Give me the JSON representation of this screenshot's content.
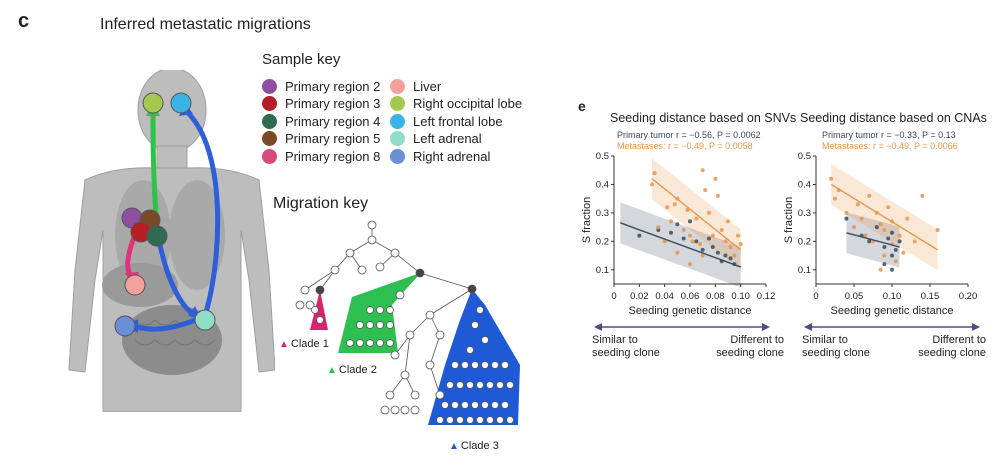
{
  "panel_c": {
    "letter": "c",
    "title": "Inferred metastatic migrations",
    "sample_key_title": "Sample key",
    "sample_key": [
      {
        "label": "Primary region 2",
        "color": "#8e4fa0"
      },
      {
        "label": "Primary region 3",
        "color": "#b51e24"
      },
      {
        "label": "Primary region 4",
        "color": "#2e6b4f"
      },
      {
        "label": "Primary region 5",
        "color": "#7a4a26"
      },
      {
        "label": "Primary region 8",
        "color": "#d84a7d"
      },
      {
        "label": "Liver",
        "color": "#f4a09c"
      },
      {
        "label": "Right occipital lobe",
        "color": "#a6c850"
      },
      {
        "label": "Left frontal lobe",
        "color": "#3ab4e6"
      },
      {
        "label": "Left adrenal",
        "color": "#8fdcc8"
      },
      {
        "label": "Right adrenal",
        "color": "#6a8fd6"
      }
    ],
    "migration_key_title": "Migration key",
    "clades": [
      {
        "label": "Clade 1",
        "color": "#d6246f"
      },
      {
        "label": "Clade 2",
        "color": "#2dbf4f"
      },
      {
        "label": "Clade 3",
        "color": "#1e5ad6"
      }
    ],
    "arrow_colors": {
      "green": "#2ec24a",
      "pink": "#e0337a",
      "blue": "#2f5fd8"
    }
  },
  "panel_e": {
    "letter": "e",
    "colors": {
      "primary": "#3b4a5a",
      "metastases": "#e8944a"
    },
    "direction_left": [
      "Similar to",
      "seeding clone"
    ],
    "direction_right": [
      "Different to",
      "seeding clone"
    ]
  },
  "chart_data": [
    {
      "type": "scatter",
      "title": "Seeding distance based on SNVs",
      "annotations": [
        {
          "series": "Primary tumor",
          "text": "Primary tumor r = −0.56, P = 0.0062"
        },
        {
          "series": "Metastases",
          "text": "Metastases: r = −0.49, P = 0.0058"
        }
      ],
      "xlabel": "Seeding genetic distance",
      "ylabel": "S fraction",
      "xlim": [
        0,
        0.12
      ],
      "ylim": [
        0.05,
        0.5
      ],
      "xticks": [
        "0",
        "0.02",
        "0.04",
        "0.06",
        "0.08",
        "0.10",
        "0.12"
      ],
      "yticks": [
        "0.1",
        "0.2",
        "0.3",
        "0.4",
        "0.5"
      ],
      "series": [
        {
          "name": "Primary tumor",
          "color": "#3b4a5a",
          "fit": [
            [
              0.005,
              0.265
            ],
            [
              0.1,
              0.11
            ]
          ],
          "points": [
            [
              0.02,
              0.22
            ],
            [
              0.035,
              0.24
            ],
            [
              0.045,
              0.23
            ],
            [
              0.055,
              0.21
            ],
            [
              0.06,
              0.27
            ],
            [
              0.065,
              0.2
            ],
            [
              0.07,
              0.17
            ],
            [
              0.078,
              0.18
            ],
            [
              0.082,
              0.16
            ],
            [
              0.088,
              0.15
            ],
            [
              0.092,
              0.14
            ],
            [
              0.05,
              0.26
            ],
            [
              0.075,
              0.21
            ],
            [
              0.085,
              0.13
            ],
            [
              0.095,
              0.12
            ]
          ]
        },
        {
          "name": "Metastases",
          "color": "#e8944a",
          "fit": [
            [
              0.03,
              0.42
            ],
            [
              0.1,
              0.17
            ]
          ],
          "points": [
            [
              0.03,
              0.4
            ],
            [
              0.032,
              0.44
            ],
            [
              0.035,
              0.25
            ],
            [
              0.04,
              0.2
            ],
            [
              0.042,
              0.32
            ],
            [
              0.045,
              0.27
            ],
            [
              0.048,
              0.33
            ],
            [
              0.05,
              0.35
            ],
            [
              0.055,
              0.24
            ],
            [
              0.058,
              0.31
            ],
            [
              0.06,
              0.22
            ],
            [
              0.062,
              0.2
            ],
            [
              0.065,
              0.28
            ],
            [
              0.068,
              0.19
            ],
            [
              0.07,
              0.45
            ],
            [
              0.072,
              0.38
            ],
            [
              0.075,
              0.3
            ],
            [
              0.078,
              0.22
            ],
            [
              0.08,
              0.42
            ],
            [
              0.082,
              0.36
            ],
            [
              0.085,
              0.24
            ],
            [
              0.088,
              0.2
            ],
            [
              0.09,
              0.27
            ],
            [
              0.092,
              0.18
            ],
            [
              0.095,
              0.15
            ],
            [
              0.098,
              0.22
            ],
            [
              0.1,
              0.19
            ],
            [
              0.05,
              0.16
            ],
            [
              0.06,
              0.12
            ],
            [
              0.07,
              0.15
            ]
          ]
        }
      ]
    },
    {
      "type": "scatter",
      "title": "Seeding distance based on CNAs",
      "annotations": [
        {
          "series": "Primary tumor",
          "text": "Primary tumor r = −0.33, P = 0.13"
        },
        {
          "series": "Metastases",
          "text": "Metastases: r = −0.49, P = 0.0066"
        }
      ],
      "xlabel": "Seeding genetic distance",
      "ylabel": "S fraction",
      "xlim": [
        0,
        0.2
      ],
      "ylim": [
        0.05,
        0.5
      ],
      "xticks": [
        "0",
        "0.05",
        "0.10",
        "0.15",
        "0.20"
      ],
      "yticks": [
        "0.1",
        "0.2",
        "0.3",
        "0.4",
        "0.5"
      ],
      "series": [
        {
          "name": "Primary tumor",
          "color": "#3b4a5a",
          "fit": [
            [
              0.04,
              0.23
            ],
            [
              0.11,
              0.18
            ]
          ],
          "points": [
            [
              0.04,
              0.28
            ],
            [
              0.06,
              0.22
            ],
            [
              0.07,
              0.2
            ],
            [
              0.08,
              0.25
            ],
            [
              0.09,
              0.18
            ],
            [
              0.095,
              0.21
            ],
            [
              0.1,
              0.15
            ],
            [
              0.1,
              0.23
            ],
            [
              0.105,
              0.17
            ],
            [
              0.11,
              0.2
            ],
            [
              0.09,
              0.12
            ],
            [
              0.1,
              0.1
            ]
          ]
        },
        {
          "name": "Metastases",
          "color": "#e8944a",
          "fit": [
            [
              0.02,
              0.4
            ],
            [
              0.16,
              0.17
            ]
          ],
          "points": [
            [
              0.02,
              0.42
            ],
            [
              0.025,
              0.35
            ],
            [
              0.03,
              0.38
            ],
            [
              0.04,
              0.3
            ],
            [
              0.05,
              0.25
            ],
            [
              0.055,
              0.33
            ],
            [
              0.06,
              0.28
            ],
            [
              0.065,
              0.22
            ],
            [
              0.07,
              0.36
            ],
            [
              0.075,
              0.2
            ],
            [
              0.08,
              0.3
            ],
            [
              0.085,
              0.26
            ],
            [
              0.09,
              0.24
            ],
            [
              0.09,
              0.15
            ],
            [
              0.095,
              0.32
            ],
            [
              0.1,
              0.19
            ],
            [
              0.1,
              0.27
            ],
            [
              0.105,
              0.13
            ],
            [
              0.11,
              0.22
            ],
            [
              0.115,
              0.16
            ],
            [
              0.12,
              0.28
            ],
            [
              0.13,
              0.2
            ],
            [
              0.14,
              0.36
            ],
            [
              0.16,
              0.24
            ],
            [
              0.085,
              0.1
            ]
          ]
        }
      ]
    }
  ]
}
